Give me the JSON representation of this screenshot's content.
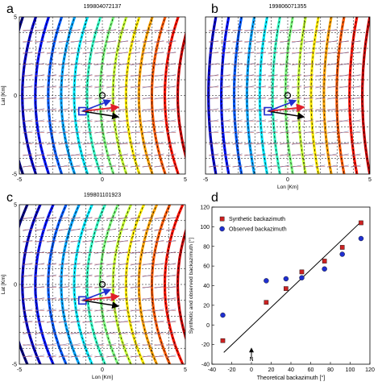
{
  "chart_data": [
    {
      "type": "contour",
      "panel_letter": "a",
      "title": "199804072137",
      "xlabel": "",
      "ylabel": "Lat [Km]",
      "xlim": [
        -5,
        5
      ],
      "ylim": [
        -5,
        5
      ],
      "xticks": [
        "-5",
        "0",
        "5"
      ],
      "yticks": [
        "5",
        "0",
        "-5"
      ],
      "curvature": 0.9,
      "grid": "dashed",
      "marker_circle": [
        0,
        0
      ],
      "station_box": [
        -1.2,
        -1.0
      ]
    },
    {
      "type": "contour",
      "panel_letter": "b",
      "title": "199806071355",
      "xlabel": "Lon [Km]",
      "ylabel": "",
      "xlim": [
        -5,
        5
      ],
      "ylim": [
        -5,
        5
      ],
      "xticks": [
        "-5",
        "0",
        "5"
      ],
      "yticks": [],
      "curvature": 0.5,
      "grid": "dashed",
      "marker_circle": [
        0,
        0
      ],
      "station_box": [
        -1.2,
        -1.0
      ]
    },
    {
      "type": "contour",
      "panel_letter": "c",
      "title": "199801101923",
      "xlabel": "Lon [Km]",
      "ylabel": "Lat [Km]",
      "xlim": [
        -5,
        5
      ],
      "ylim": [
        -5,
        5
      ],
      "xticks": [
        "-5",
        "0",
        "5"
      ],
      "yticks": [
        "5",
        "0",
        "-5"
      ],
      "curvature": 1.2,
      "grid": "dashed",
      "marker_circle": [
        0,
        0
      ],
      "station_box": [
        -1.2,
        -1.0
      ]
    },
    {
      "type": "scatter",
      "panel_letter": "d",
      "title": "",
      "xlabel": "Theoretical backazimuth [°]",
      "ylabel": "Synthetic and observed backazimuth [°]",
      "xlim": [
        -40,
        120
      ],
      "ylim": [
        -40,
        120
      ],
      "xticks": [
        -40,
        -20,
        0,
        20,
        40,
        60,
        80,
        100,
        120
      ],
      "yticks": [
        -40,
        -20,
        0,
        20,
        40,
        60,
        80,
        100,
        120
      ],
      "legend": {
        "position": "top-left",
        "synthetic_label": "Synthetic backazimuth",
        "observed_label": "Observed backazimuth"
      },
      "north_label": "N",
      "reference_line": {
        "x": [
          -28,
          112
        ],
        "y": [
          -28,
          106
        ]
      },
      "series": [
        {
          "name": "Synthetic backazimuth",
          "color": "#cc2222",
          "x": [
            -29,
            15,
            35,
            51,
            74,
            92,
            111
          ],
          "y": [
            -16,
            23,
            37,
            54,
            65,
            79,
            104
          ]
        },
        {
          "name": "Observed backazimuth",
          "color": "#1f2fd0",
          "x": [
            -29,
            15,
            35,
            51,
            74,
            92,
            111
          ],
          "y": [
            10,
            45,
            47,
            48,
            57,
            72,
            88
          ]
        }
      ]
    }
  ]
}
